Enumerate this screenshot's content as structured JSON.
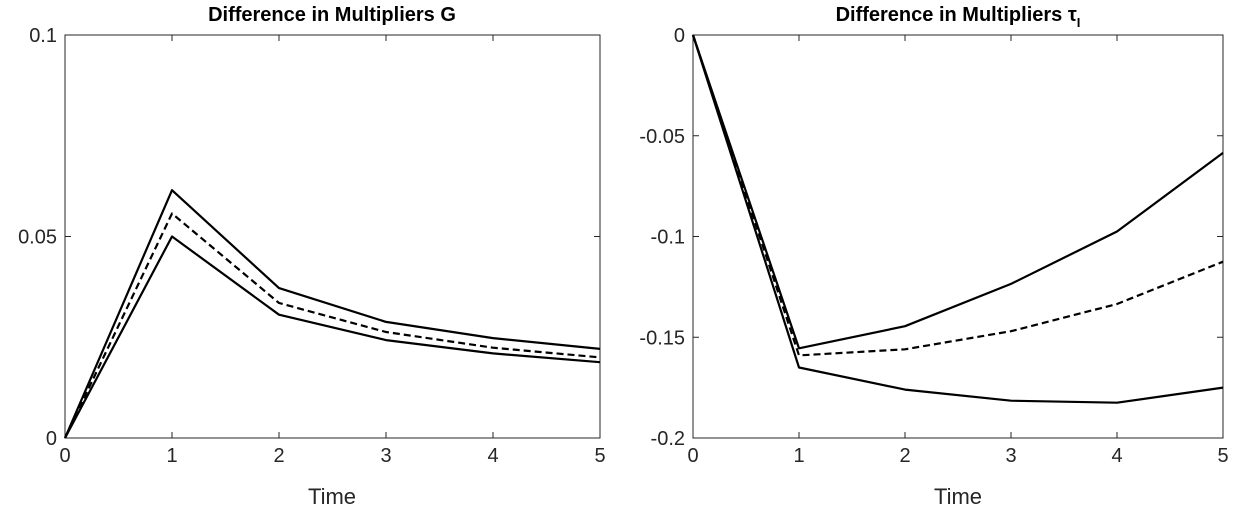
{
  "chart_data": [
    {
      "type": "line",
      "title": "Difference in Multipliers G",
      "title_subscript": "",
      "xlabel": "Time",
      "ylabel": "",
      "xlim": [
        0,
        5
      ],
      "ylim": [
        0,
        0.1
      ],
      "x_ticks": [
        0,
        1,
        2,
        3,
        4,
        5
      ],
      "x_tick_labels": [
        "0",
        "1",
        "2",
        "3",
        "4",
        "5"
      ],
      "y_ticks": [
        0,
        0.05,
        0.1
      ],
      "y_tick_labels": [
        "0",
        "0.05",
        "0.1"
      ],
      "grid": false,
      "x": [
        0,
        1,
        2,
        3,
        4,
        5
      ],
      "series": [
        {
          "style": "solid",
          "values": [
            0,
            0.0615,
            0.0372,
            0.0288,
            0.0248,
            0.0221
          ]
        },
        {
          "style": "dashed",
          "values": [
            0,
            0.0557,
            0.0335,
            0.0263,
            0.0224,
            0.02
          ]
        },
        {
          "style": "solid",
          "values": [
            0,
            0.05,
            0.0306,
            0.0243,
            0.021,
            0.0188
          ]
        }
      ]
    },
    {
      "type": "line",
      "title": "Difference in Multipliers τ",
      "title_subscript": "I",
      "xlabel": "Time",
      "ylabel": "",
      "xlim": [
        0,
        5
      ],
      "ylim": [
        -0.2,
        0
      ],
      "x_ticks": [
        0,
        1,
        2,
        3,
        4,
        5
      ],
      "x_tick_labels": [
        "0",
        "1",
        "2",
        "3",
        "4",
        "5"
      ],
      "y_ticks": [
        0,
        -0.05,
        -0.1,
        -0.15,
        -0.2
      ],
      "y_tick_labels": [
        "0",
        "-0.05",
        "-0.1",
        "-0.15",
        "-0.2"
      ],
      "grid": false,
      "x": [
        0,
        1,
        2,
        3,
        4,
        5
      ],
      "series": [
        {
          "style": "solid",
          "values": [
            0,
            -0.1555,
            -0.1445,
            -0.1235,
            -0.0975,
            -0.0585
          ]
        },
        {
          "style": "dashed",
          "values": [
            0,
            -0.159,
            -0.156,
            -0.147,
            -0.1335,
            -0.1125
          ]
        },
        {
          "style": "solid",
          "values": [
            0,
            -0.165,
            -0.176,
            -0.1815,
            -0.1825,
            -0.175
          ]
        }
      ]
    }
  ]
}
